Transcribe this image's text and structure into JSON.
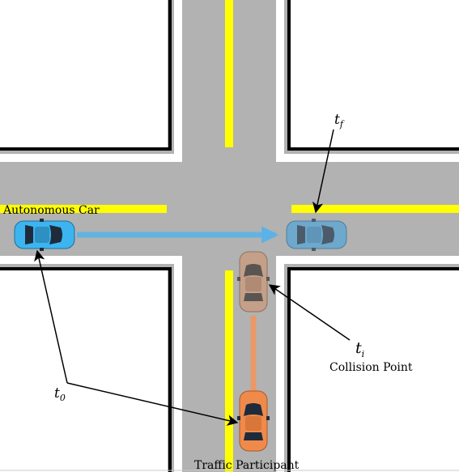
{
  "labels": {
    "autonomous_car": "Autonomous Car",
    "traffic_participant": "Traffic Participant",
    "collision_point": "Collision Point",
    "t0_base": "t",
    "t0_sub": "0",
    "ti_base": "t",
    "ti_sub": "i",
    "tf_base": "t",
    "tf_sub": "f"
  },
  "colors": {
    "road": "#b2b2b2",
    "curb": "#000000",
    "sidewalk": "#ffffff",
    "lane_marking": "#ffff00",
    "autonomous_car": "#3cb4f0",
    "autonomous_car_ghost": "#6ea8cc",
    "traffic_participant": "#f08a4b",
    "traffic_participant_ghost": "#c4a088",
    "trajectory_blue": "#5ab2e6",
    "trajectory_orange": "#f0955f",
    "car_glass": "#1f2b3a"
  }
}
